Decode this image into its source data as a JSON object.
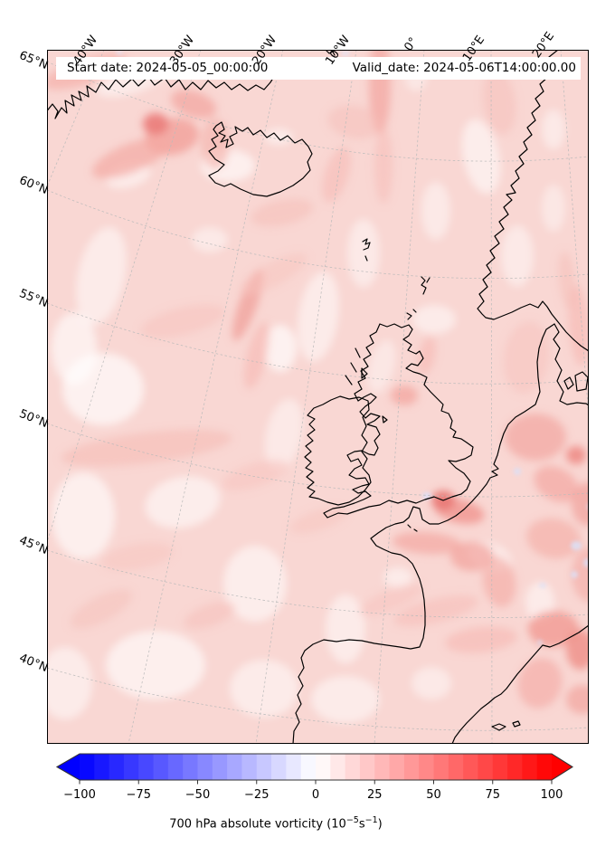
{
  "map": {
    "start_label": "Start date: 2024-05-05_00:00:00",
    "valid_label": "Valid_date: 2024-05-06T14:00:00.00"
  },
  "axes": {
    "top": [
      "40°W",
      "30°W",
      "20°W",
      "10°W",
      "0°",
      "10°E",
      "20°E"
    ],
    "left": [
      "65°N",
      "60°N",
      "55°N",
      "50°N",
      "45°N",
      "40°N"
    ]
  },
  "colorbar": {
    "tick_labels": [
      "−100",
      "−75",
      "−50",
      "−25",
      "0",
      "25",
      "50",
      "75",
      "100"
    ],
    "tick_values": [
      -100,
      -75,
      -50,
      -25,
      0,
      25,
      50,
      75,
      100
    ],
    "range": [
      -100,
      100
    ],
    "under_color": "#0000ff",
    "over_color": "#ff0000",
    "colors": [
      "#0808ff",
      "#1818ff",
      "#2828ff",
      "#3838ff",
      "#4848ff",
      "#5858ff",
      "#6868ff",
      "#7878ff",
      "#8888ff",
      "#9898ff",
      "#a8a8ff",
      "#b8b8ff",
      "#c8c8ff",
      "#d8d8ff",
      "#e8e8ff",
      "#f8f8ff",
      "#fff8f8",
      "#ffe8e8",
      "#ffd8d8",
      "#ffc8c8",
      "#ffb8b8",
      "#ffa8a8",
      "#ff9898",
      "#ff8888",
      "#ff7878",
      "#ff6868",
      "#ff5858",
      "#ff4848",
      "#ff3838",
      "#ff2828",
      "#ff1818",
      "#ff0808"
    ],
    "label_prefix": "700 hPa absolute vorticity (10",
    "label_sup1": "−5",
    "label_mid": "s",
    "label_sup2": "−1",
    "label_suffix": ")"
  },
  "chart_data": {
    "type": "heatmap",
    "title": "700 hPa absolute vorticity (10^-5 s^-1)",
    "colormap": "blue-white-red",
    "value_range": [
      -100,
      100
    ],
    "colorbar_ticks": [
      -100,
      -75,
      -50,
      -25,
      0,
      25,
      50,
      75,
      100
    ],
    "region": "North Atlantic / Europe, 40W-20E, ~38N-66N",
    "notes": "Field is predominantly weak positive vorticity (pale red ~5-25) over the whole domain; stronger maxima (~40-60) at a cyclonic swirl near 62N 30W, over the English Channel / Brittany, the North Sea east of Britain, and the western Mediterranean; a few small negative (pale blue) pockets near the Channel and west Mediterranean."
  }
}
